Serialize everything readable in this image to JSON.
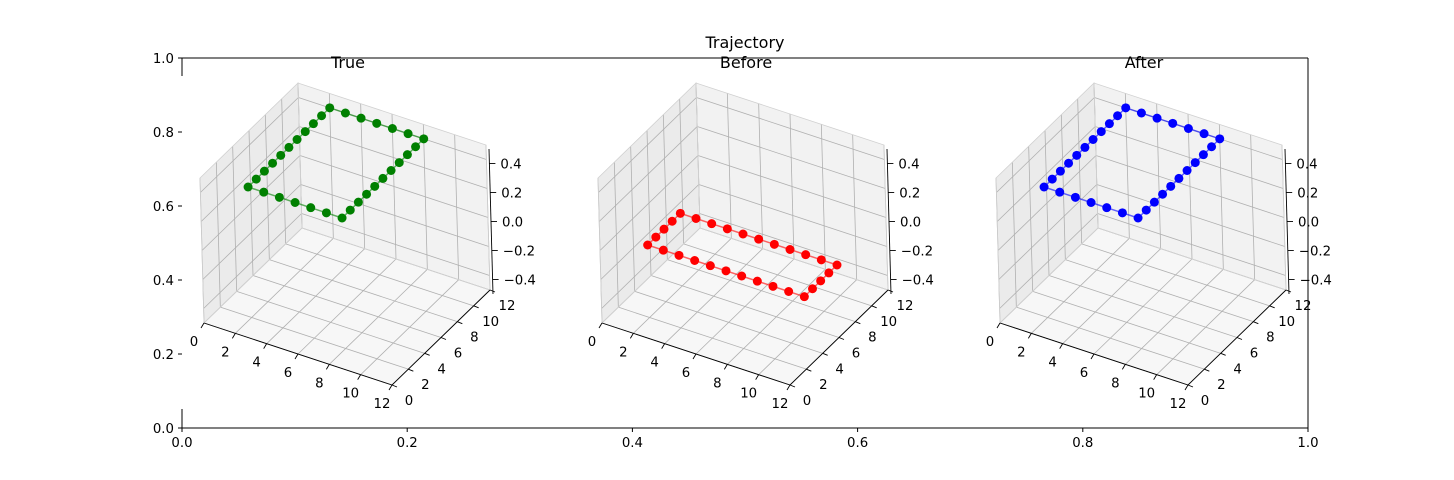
{
  "figure": {
    "suptitle": "Trajectory",
    "outer_axes": {
      "x_ticks": [
        "0.0",
        "0.2",
        "0.4",
        "0.6",
        "0.8",
        "1.0"
      ],
      "y_ticks": [
        "0.0",
        "0.2",
        "0.4",
        "0.6",
        "0.8",
        "1.0"
      ]
    }
  },
  "chart_data": [
    {
      "type": "scatter3d",
      "title": "True",
      "color": "#008000",
      "xlim": [
        0,
        12
      ],
      "ylim": [
        0,
        12
      ],
      "zlim": [
        -0.5,
        0.5
      ],
      "x_ticks": [
        "0",
        "2",
        "4",
        "6",
        "8",
        "10",
        "12"
      ],
      "y_ticks": [
        "0",
        "2",
        "4",
        "6",
        "8",
        "10",
        "12"
      ],
      "z_ticks": [
        "−0.4",
        "−0.2",
        "0.0",
        "0.2",
        "0.4"
      ],
      "z_tick_values": [
        -0.4,
        -0.2,
        0.0,
        0.2,
        0.4
      ],
      "points": {
        "x": [
          2,
          2,
          2,
          2,
          2,
          2,
          2,
          2,
          2,
          2,
          2,
          3,
          4,
          5,
          6,
          7,
          8,
          8,
          8,
          8,
          8,
          8,
          8,
          8,
          8,
          8,
          8,
          7,
          6,
          5,
          4,
          3
        ],
        "y": [
          2,
          3,
          4,
          5,
          6,
          7,
          8,
          9,
          10,
          11,
          12,
          12,
          12,
          12,
          12,
          12,
          12,
          11,
          10,
          9,
          8,
          7,
          6,
          5,
          4,
          3,
          2,
          2,
          2,
          2,
          2,
          2
        ],
        "z": [
          0.4,
          0.4,
          0.4,
          0.4,
          0.4,
          0.4,
          0.4,
          0.4,
          0.4,
          0.4,
          0.4,
          0.4,
          0.4,
          0.4,
          0.4,
          0.4,
          0.4,
          0.4,
          0.4,
          0.4,
          0.4,
          0.4,
          0.4,
          0.4,
          0.4,
          0.4,
          0.4,
          0.4,
          0.4,
          0.4,
          0.4,
          0.4
        ]
      }
    },
    {
      "type": "scatter3d",
      "title": "Before",
      "color": "#ff0000",
      "xlim": [
        0,
        12
      ],
      "ylim": [
        0,
        12
      ],
      "zlim": [
        -0.5,
        0.5
      ],
      "x_ticks": [
        "0",
        "2",
        "4",
        "6",
        "8",
        "10",
        "12"
      ],
      "y_ticks": [
        "0",
        "2",
        "4",
        "6",
        "8",
        "10",
        "12"
      ],
      "z_ticks": [
        "0.4",
        "0.2",
        "0.0",
        "−0.2",
        "−0.4"
      ],
      "z_tick_values": [
        0.4,
        0.2,
        0.0,
        -0.2,
        -0.4
      ],
      "points": {
        "x": [
          2,
          2,
          2,
          2,
          2,
          3,
          4,
          5,
          6,
          7,
          8,
          9,
          10,
          11,
          12,
          12,
          12,
          12,
          12,
          11,
          10,
          9,
          8,
          7,
          6,
          5,
          4,
          3
        ],
        "y": [
          2,
          3,
          4,
          5,
          6,
          6,
          6,
          6,
          6,
          6,
          6,
          6,
          6,
          6,
          6,
          5,
          4,
          3,
          2,
          2,
          2,
          2,
          2,
          2,
          2,
          2,
          2,
          2
        ],
        "z": [
          0.0,
          0.0,
          0.0,
          0.0,
          0.0,
          0.0,
          0.0,
          0.0,
          0.0,
          0.0,
          0.0,
          0.0,
          0.0,
          0.0,
          0.0,
          0.0,
          0.0,
          0.0,
          0.0,
          0.0,
          0.0,
          0.0,
          0.0,
          0.0,
          0.0,
          0.0,
          0.0,
          0.0
        ]
      }
    },
    {
      "type": "scatter3d",
      "title": "After",
      "color": "#0000ff",
      "xlim": [
        0,
        12
      ],
      "ylim": [
        0,
        12
      ],
      "zlim": [
        -0.5,
        0.5
      ],
      "x_ticks": [
        "0",
        "2",
        "4",
        "6",
        "8",
        "10",
        "12"
      ],
      "y_ticks": [
        "0",
        "2",
        "4",
        "6",
        "8",
        "10",
        "12"
      ],
      "z_ticks": [
        "0.4",
        "0.2",
        "0.0",
        "−0.2",
        "−0.4"
      ],
      "z_tick_values": [
        0.4,
        0.2,
        0.0,
        -0.2,
        -0.4
      ],
      "points": {
        "x": [
          2,
          2,
          2,
          2,
          2,
          2,
          2,
          2,
          2,
          2,
          2,
          3,
          4,
          5,
          6,
          7,
          8,
          8,
          8,
          8,
          8,
          8,
          8,
          8,
          8,
          8,
          8,
          7,
          6,
          5,
          4,
          3
        ],
        "y": [
          2,
          3,
          4,
          5,
          6,
          7,
          8,
          9,
          10,
          11,
          12,
          12,
          12,
          12,
          12,
          12,
          12,
          11,
          10,
          9,
          8,
          7,
          6,
          5,
          4,
          3,
          2,
          2,
          2,
          2,
          2,
          2
        ],
        "z": [
          0.4,
          0.4,
          0.4,
          0.4,
          0.4,
          0.4,
          0.4,
          0.4,
          0.4,
          0.4,
          0.4,
          0.4,
          0.4,
          0.4,
          0.4,
          0.4,
          0.4,
          0.4,
          0.4,
          0.4,
          0.4,
          0.4,
          0.4,
          0.4,
          0.4,
          0.4,
          0.4,
          0.4,
          0.4,
          0.4,
          0.4,
          0.4
        ]
      }
    }
  ]
}
